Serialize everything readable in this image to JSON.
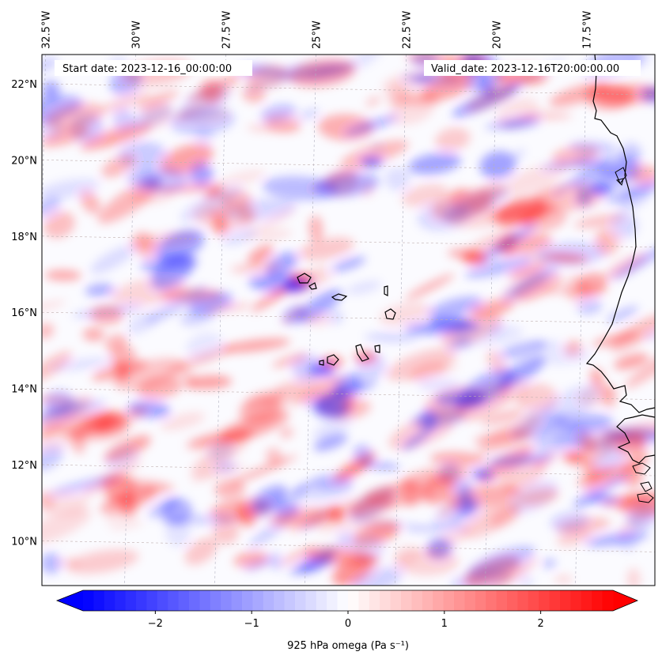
{
  "map": {
    "header": {
      "start_date": "Start date: 2023-12-16_00:00:00",
      "valid_date": "Valid_date: 2023-12-16T20:00:00.00"
    },
    "lon_labels": [
      {
        "text": "32.5°W",
        "lon": -32.5
      },
      {
        "text": "30°W",
        "lon": -30.0
      },
      {
        "text": "27.5°W",
        "lon": -27.5
      },
      {
        "text": "25°W",
        "lon": -25.0
      },
      {
        "text": "22.5°W",
        "lon": -22.5
      },
      {
        "text": "20°W",
        "lon": -20.0
      },
      {
        "text": "17.5°W",
        "lon": -17.5
      }
    ],
    "lat_labels": [
      {
        "text": "22°N",
        "lat": 22
      },
      {
        "text": "20°N",
        "lat": 20
      },
      {
        "text": "18°N",
        "lat": 18
      },
      {
        "text": "16°N",
        "lat": 16
      },
      {
        "text": "14°N",
        "lat": 14
      },
      {
        "text": "12°N",
        "lat": 12
      },
      {
        "text": "10°N",
        "lat": 10
      }
    ],
    "extent": {
      "lon": [
        -32.5,
        -15.5
      ],
      "lat": [
        8.9,
        22.8
      ]
    },
    "field": "925 hPa omega",
    "colormap": {
      "name": "bwr",
      "low": "#0000ff",
      "mid": "#ffffff",
      "high": "#ff0000"
    },
    "coastline_color": "#000000",
    "gridlines": true
  },
  "colorbar": {
    "label": "925 hPa omega (Pa s⁻¹)",
    "range": [
      -2.75,
      2.75
    ],
    "ticks": [
      {
        "text": "−2",
        "value": -2
      },
      {
        "text": "−1",
        "value": -1
      },
      {
        "text": "0",
        "value": 0
      },
      {
        "text": "1",
        "value": 1
      },
      {
        "text": "2",
        "value": 2
      }
    ],
    "extend": "both"
  }
}
